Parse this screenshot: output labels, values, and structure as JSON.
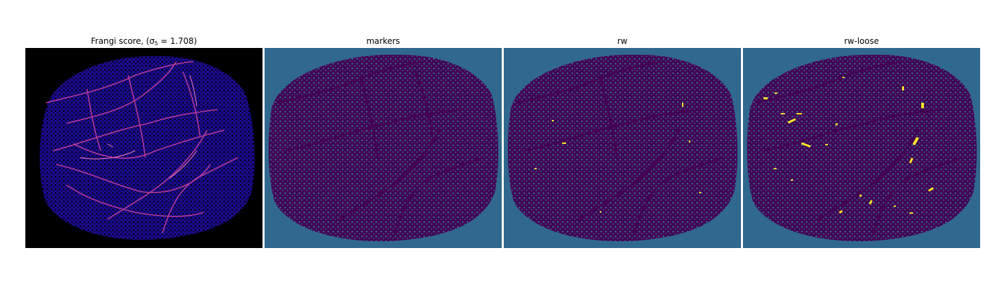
{
  "panels": [
    {
      "id": "frangi",
      "title_prefix": "Frangi score, (σ",
      "title_sub": "5",
      "title_suffix": " = 1.708)"
    },
    {
      "id": "markers",
      "title": "markers"
    },
    {
      "id": "rw",
      "title": "rw"
    },
    {
      "id": "rw-loose",
      "title": "rw-loose"
    }
  ],
  "colors": {
    "background_frangi": "#000000",
    "tissue_frangi": "#1a0b8c",
    "vessel_frangi": "#c83fa0",
    "vessel_frangi_bright": "#ff7fb0",
    "background_seg": "#31688e",
    "tissue_seg": "#440154",
    "highlight_seg": "#fde725"
  }
}
